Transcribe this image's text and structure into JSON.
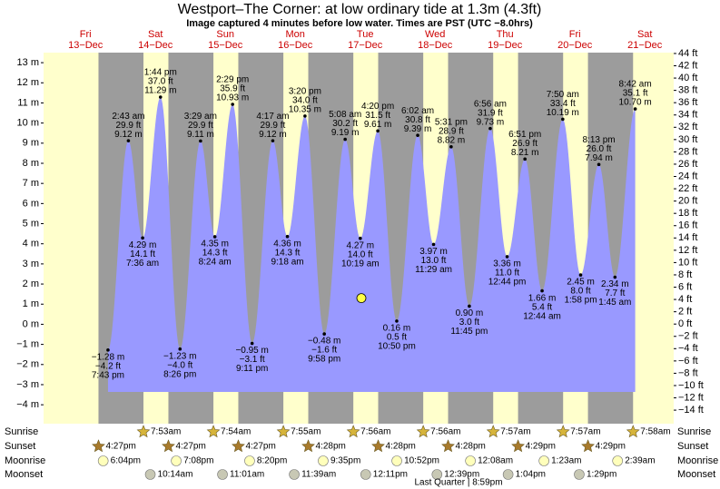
{
  "header": {
    "title": "Westport–The Corner: at low  ordinary tide at 1.3m (4.3ft)",
    "subtitle": "Image captured 4 minutes before low water. Times are PST (UTC −8.0hrs)"
  },
  "chart_data": {
    "type": "tide",
    "ylim": [
      -4.94,
      13.5
    ],
    "yticks": [
      {
        "value": -4,
        "label": "−4 m"
      },
      {
        "value": -3,
        "label": "−3 m"
      },
      {
        "value": -2,
        "label": "−2 m"
      },
      {
        "value": -1,
        "label": "−1 m"
      },
      {
        "value": 0,
        "label": "0 m"
      },
      {
        "value": 1,
        "label": "1 m"
      },
      {
        "value": 2,
        "label": "2 m"
      },
      {
        "value": 3,
        "label": "3 m"
      },
      {
        "value": 4,
        "label": "4 m"
      },
      {
        "value": 5,
        "label": "5 m"
      },
      {
        "value": 6,
        "label": "6 m"
      },
      {
        "value": 7,
        "label": "7 m"
      },
      {
        "value": 8,
        "label": "8 m"
      },
      {
        "value": 9,
        "label": "9 m"
      },
      {
        "value": 10,
        "label": "10 m"
      },
      {
        "value": 11,
        "label": "11 m"
      },
      {
        "value": 12,
        "label": "12 m"
      },
      {
        "value": 13,
        "label": "13 m"
      }
    ],
    "y2lim": [
      -16.2,
      44.14
    ],
    "y2ticks": [
      {
        "value": -14,
        "label": "−14 ft"
      },
      {
        "value": -12,
        "label": "−12 ft"
      },
      {
        "value": -10,
        "label": "−10 ft"
      },
      {
        "value": -8,
        "label": "−8 ft"
      },
      {
        "value": -6,
        "label": "−6 ft"
      },
      {
        "value": -4,
        "label": "−4 ft"
      },
      {
        "value": -2,
        "label": "−2 ft"
      },
      {
        "value": 0,
        "label": "0 ft"
      },
      {
        "value": 2,
        "label": "2 ft"
      },
      {
        "value": 4,
        "label": "4 ft"
      },
      {
        "value": 6,
        "label": "6 ft"
      },
      {
        "value": 8,
        "label": "8 ft"
      },
      {
        "value": 10,
        "label": "10 ft"
      },
      {
        "value": 12,
        "label": "12 ft"
      },
      {
        "value": 14,
        "label": "14 ft"
      },
      {
        "value": 16,
        "label": "16 ft"
      },
      {
        "value": 18,
        "label": "18 ft"
      },
      {
        "value": 20,
        "label": "20 ft"
      },
      {
        "value": 22,
        "label": "22 ft"
      },
      {
        "value": 24,
        "label": "24 ft"
      },
      {
        "value": 26,
        "label": "26 ft"
      },
      {
        "value": 28,
        "label": "28 ft"
      },
      {
        "value": 30,
        "label": "30 ft"
      },
      {
        "value": 32,
        "label": "32 ft"
      },
      {
        "value": 34,
        "label": "34 ft"
      },
      {
        "value": 36,
        "label": "36 ft"
      },
      {
        "value": 38,
        "label": "38 ft"
      },
      {
        "value": 40,
        "label": "40 ft"
      },
      {
        "value": 42,
        "label": "42 ft"
      },
      {
        "value": 44,
        "label": "44 ft"
      }
    ],
    "now_level": 1.3,
    "colors": {
      "day": "#ffffcc",
      "night": "#9c9c9c",
      "water": "#9999ff",
      "date": "#cc0000",
      "sunrise": "#d6b43a",
      "sunset": "#a87a2c",
      "moonrise": "#ffffbb",
      "moonset": "#c8c8b4"
    },
    "rows": {
      "sunrise": "Sunrise",
      "sunset": "Sunset",
      "moonrise": "Moonrise",
      "moonset": "Moonset"
    },
    "moon_phase": "Last Quarter | 8:59pm",
    "days": [
      {
        "weekday": "Fri",
        "date": "13−Dec",
        "tides": [
          {
            "time": "7:43 pm",
            "m": -1.28,
            "m_label": "−1.28 m",
            "ft_label": "−4.2 ft"
          }
        ],
        "sunset": "4:27pm",
        "moonrise": "6:04pm"
      },
      {
        "weekday": "Sat",
        "date": "14−Dec",
        "tides": [
          {
            "time": "2:43 am",
            "m": 9.12,
            "m_label": "9.12 m",
            "ft_label": "29.9 ft"
          },
          {
            "time": "7:36 am",
            "m": 4.29,
            "m_label": "4.29 m",
            "ft_label": "14.1 ft"
          },
          {
            "time": "1:44 pm",
            "m": 11.29,
            "m_label": "11.29 m",
            "ft_label": "37.0 ft"
          },
          {
            "time": "8:26 pm",
            "m": -1.23,
            "m_label": "−1.23 m",
            "ft_label": "−4.0 ft"
          }
        ],
        "sunrise": "7:53am",
        "sunset": "4:27pm",
        "moonrise": "7:08pm",
        "moonset": "10:14am"
      },
      {
        "weekday": "Sun",
        "date": "15−Dec",
        "tides": [
          {
            "time": "3:29 am",
            "m": 9.11,
            "m_label": "9.11 m",
            "ft_label": "29.9 ft"
          },
          {
            "time": "8:24 am",
            "m": 4.35,
            "m_label": "4.35 m",
            "ft_label": "14.3 ft"
          },
          {
            "time": "2:29 pm",
            "m": 10.93,
            "m_label": "10.93 m",
            "ft_label": "35.9 ft"
          },
          {
            "time": "9:11 pm",
            "m": -0.95,
            "m_label": "−0.95 m",
            "ft_label": "−3.1 ft"
          }
        ],
        "sunrise": "7:54am",
        "sunset": "4:27pm",
        "moonrise": "8:20pm",
        "moonset": "11:01am"
      },
      {
        "weekday": "Mon",
        "date": "16−Dec",
        "tides": [
          {
            "time": "4:17 am",
            "m": 9.12,
            "m_label": "9.12 m",
            "ft_label": "29.9 ft"
          },
          {
            "time": "9:18 am",
            "m": 4.36,
            "m_label": "4.36 m",
            "ft_label": "14.3 ft"
          },
          {
            "time": "3:20 pm",
            "m": 10.35,
            "m_label": "10.35 m",
            "ft_label": "34.0 ft"
          },
          {
            "time": "9:58 pm",
            "m": -0.48,
            "m_label": "−0.48 m",
            "ft_label": "−1.6 ft"
          }
        ],
        "sunrise": "7:55am",
        "sunset": "4:28pm",
        "moonrise": "9:35pm",
        "moonset": "11:39am"
      },
      {
        "weekday": "Tue",
        "date": "17−Dec",
        "tides": [
          {
            "time": "5:08 am",
            "m": 9.19,
            "m_label": "9.19 m",
            "ft_label": "30.2 ft"
          },
          {
            "time": "10:19 am",
            "m": 4.27,
            "m_label": "4.27 m",
            "ft_label": "14.0 ft"
          },
          {
            "time": "4:20 pm",
            "m": 9.61,
            "m_label": "9.61 m",
            "ft_label": "31.5 ft"
          },
          {
            "time": "10:50 pm",
            "m": 0.16,
            "m_label": "0.16 m",
            "ft_label": "0.5 ft"
          }
        ],
        "sunrise": "7:56am",
        "sunset": "4:28pm",
        "moonrise": "10:52pm",
        "moonset": "12:11pm"
      },
      {
        "weekday": "Wed",
        "date": "18−Dec",
        "tides": [
          {
            "time": "6:02 am",
            "m": 9.39,
            "m_label": "9.39 m",
            "ft_label": "30.8 ft"
          },
          {
            "time": "11:29 am",
            "m": 3.97,
            "m_label": "3.97 m",
            "ft_label": "13.0 ft"
          },
          {
            "time": "5:31 pm",
            "m": 8.82,
            "m_label": "8.82 m",
            "ft_label": "28.9 ft"
          },
          {
            "time": "11:45 pm",
            "m": 0.9,
            "m_label": "0.90 m",
            "ft_label": "3.0 ft"
          }
        ],
        "sunrise": "7:56am",
        "sunset": "4:28pm",
        "moonset": "12:39pm"
      },
      {
        "weekday": "Thu",
        "date": "19−Dec",
        "tides": [
          {
            "time": "6:56 am",
            "m": 9.73,
            "m_label": "9.73 m",
            "ft_label": "31.9 ft"
          },
          {
            "time": "12:44 pm",
            "m": 3.36,
            "m_label": "3.36 m",
            "ft_label": "11.0 ft"
          },
          {
            "time": "6:51 pm",
            "m": 8.21,
            "m_label": "8.21 m",
            "ft_label": "26.9 ft"
          }
        ],
        "sunrise": "7:57am",
        "sunset": "4:29pm",
        "moonrise": "12:08am",
        "moonset": "1:04pm"
      },
      {
        "weekday": "Fri",
        "date": "20−Dec",
        "tides": [
          {
            "time": "12:44 am",
            "m": 1.66,
            "m_label": "1.66 m",
            "ft_label": "5.4 ft"
          },
          {
            "time": "7:50 am",
            "m": 10.19,
            "m_label": "10.19 m",
            "ft_label": "33.4 ft"
          },
          {
            "time": "1:58 pm",
            "m": 2.45,
            "m_label": "2.45 m",
            "ft_label": "8.0 ft"
          },
          {
            "time": "8:13 pm",
            "m": 7.94,
            "m_label": "7.94 m",
            "ft_label": "26.0 ft"
          }
        ],
        "sunrise": "7:57am",
        "sunset": "4:29pm",
        "moonrise": "1:23am",
        "moonset": "1:29pm"
      },
      {
        "weekday": "Sat",
        "date": "21−Dec",
        "tides": [
          {
            "time": "1:45 am",
            "m": 2.34,
            "m_label": "2.34 m",
            "ft_label": "7.7 ft"
          },
          {
            "time": "8:42 am",
            "m": 10.7,
            "m_label": "10.70 m",
            "ft_label": "35.1 ft"
          }
        ],
        "sunrise": "7:58am",
        "moonrise": "2:39am"
      }
    ]
  }
}
